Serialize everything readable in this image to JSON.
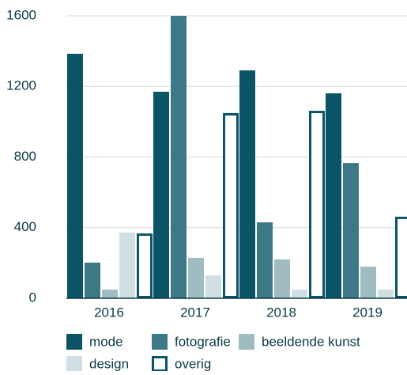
{
  "chart_data": {
    "type": "bar",
    "categories": [
      "2016",
      "2017",
      "2018",
      "2019"
    ],
    "series": [
      {
        "name": "mode",
        "color": "#0b5366",
        "values": [
          1385,
          1170,
          1291,
          1161
        ]
      },
      {
        "name": "fotografie",
        "color": "#3d7886",
        "values": [
          202,
          1600,
          430,
          766
        ]
      },
      {
        "name": "beeldende kunst",
        "color": "#9fbcc1",
        "values": [
          49,
          229,
          220,
          179
        ]
      },
      {
        "name": "design",
        "color": "#cfdfe2",
        "values": [
          372,
          130,
          49,
          49
        ]
      },
      {
        "name": "overig",
        "color": "#0b5366",
        "outline": true,
        "values": [
          367,
          1049,
          1062,
          462
        ]
      }
    ],
    "ylim": [
      0,
      1600
    ],
    "yticks": [
      0,
      400,
      800,
      1200,
      1600
    ],
    "grid": true
  }
}
